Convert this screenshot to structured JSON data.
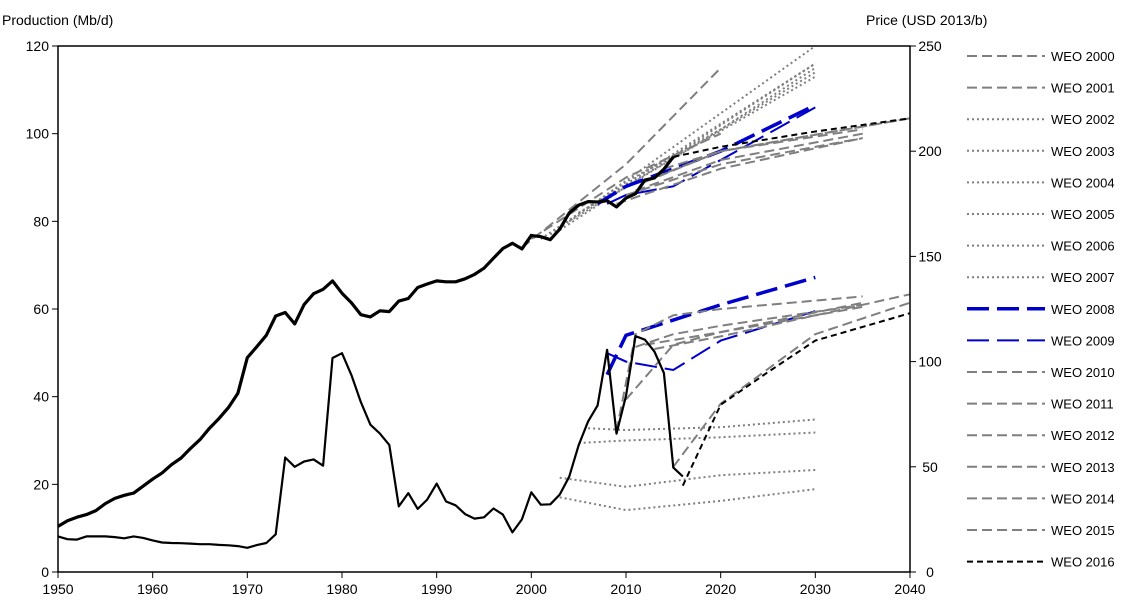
{
  "chart_data": {
    "type": "line",
    "left_axis_title": "Production (Mb/d)",
    "right_axis_title": "Price (USD 2013/b)",
    "x_range": [
      1950,
      2040
    ],
    "x_ticks": [
      "1950",
      "1960",
      "1970",
      "1980",
      "1990",
      "2000",
      "2010",
      "2020",
      "2030",
      "2040"
    ],
    "left_range": [
      0,
      120
    ],
    "left_ticks": [
      "0",
      "20",
      "40",
      "60",
      "80",
      "100",
      "120"
    ],
    "right_range": [
      0,
      250
    ],
    "right_ticks": [
      "0",
      "50",
      "100",
      "150",
      "200",
      "250"
    ],
    "grid": false,
    "legend_position": "right",
    "colors": {
      "grey": "#7f7f7f",
      "blue": "#0000cc",
      "black": "#000000"
    },
    "historical": {
      "production": {
        "x": [
          1950,
          1951,
          1952,
          1953,
          1954,
          1955,
          1956,
          1957,
          1958,
          1959,
          1960,
          1961,
          1962,
          1963,
          1964,
          1965,
          1966,
          1967,
          1968,
          1969,
          1970,
          1971,
          1972,
          1973,
          1974,
          1975,
          1976,
          1977,
          1978,
          1979,
          1980,
          1981,
          1982,
          1983,
          1984,
          1985,
          1986,
          1987,
          1988,
          1989,
          1990,
          1991,
          1992,
          1993,
          1994,
          1995,
          1996,
          1997,
          1998,
          1999,
          2000,
          2001,
          2002,
          2003,
          2004,
          2005,
          2006,
          2007,
          2008,
          2009,
          2010,
          2011,
          2012,
          2013,
          2014,
          2015
        ],
        "y": [
          10.4,
          11.7,
          12.5,
          13.1,
          14,
          15.6,
          16.8,
          17.5,
          18,
          19.6,
          21.2,
          22.6,
          24.5,
          26,
          28.2,
          30.2,
          32.8,
          35,
          37.5,
          40.8,
          48.9,
          51.4,
          54,
          58.4,
          59.2,
          56.6,
          61,
          63.5,
          64.5,
          66.4,
          63.6,
          61.4,
          58.7,
          58.2,
          59.6,
          59.4,
          61.8,
          62.4,
          64.9,
          65.7,
          66.4,
          66.2,
          66.2,
          66.9,
          67.9,
          69.3,
          71.6,
          73.8,
          75,
          73.7,
          76.8,
          76.5,
          75.8,
          78.2,
          81.9,
          83.7,
          84.5,
          84.4,
          84.7,
          83.3,
          85.3,
          86.3,
          89.4,
          89.9,
          91.9,
          94.7
        ]
      },
      "price": {
        "x": [
          1950,
          1951,
          1952,
          1953,
          1954,
          1955,
          1956,
          1957,
          1958,
          1959,
          1960,
          1961,
          1962,
          1963,
          1964,
          1965,
          1966,
          1967,
          1968,
          1969,
          1970,
          1971,
          1972,
          1973,
          1974,
          1975,
          1976,
          1977,
          1978,
          1979,
          1980,
          1981,
          1982,
          1983,
          1984,
          1985,
          1986,
          1987,
          1988,
          1989,
          1990,
          1991,
          1992,
          1993,
          1994,
          1995,
          1996,
          1997,
          1998,
          1999,
          2000,
          2001,
          2002,
          2003,
          2004,
          2005,
          2006,
          2007,
          2008,
          2009,
          2010,
          2011,
          2012,
          2013,
          2014,
          2015,
          2016
        ],
        "y": [
          16.9,
          15.6,
          15.4,
          16.9,
          16.9,
          16.9,
          16.6,
          16,
          16.9,
          16.2,
          15,
          14,
          13.8,
          13.7,
          13.5,
          13.2,
          13.2,
          12.9,
          12.7,
          12.3,
          11.5,
          12.8,
          13.8,
          17.9,
          54.4,
          50,
          52.5,
          53.5,
          50.5,
          101.7,
          104,
          93.5,
          80.7,
          70,
          65.8,
          60.4,
          31.2,
          37.5,
          30,
          34.4,
          42,
          33.5,
          31.7,
          27.5,
          25.4,
          26,
          30.2,
          27.3,
          18.8,
          25,
          37.9,
          32,
          32.2,
          36.8,
          45.3,
          60.3,
          71.6,
          79.2,
          105.6,
          65.8,
          83.7,
          112.1,
          110.4,
          104.8,
          94.6,
          49.6,
          45.4
        ]
      }
    },
    "projections": [
      {
        "name": "WEO 2000",
        "style": "grey-dash",
        "width": 2,
        "lines": [
          {
            "axis": "left",
            "x": [
              1999,
              2010,
              2020
            ],
            "y": [
              74,
              93,
              115
            ]
          }
        ]
      },
      {
        "name": "WEO 2001",
        "style": "grey-dash",
        "width": 2,
        "lines": [
          {
            "axis": "left",
            "x": [
              2000,
              2010,
              2020
            ],
            "y": [
              76,
              90,
              100
            ]
          }
        ]
      },
      {
        "name": "WEO 2002",
        "style": "grey-dot",
        "width": 2,
        "lines": [
          {
            "axis": "left",
            "x": [
              2001,
              2010,
              2020,
              2030
            ],
            "y": [
              76,
              89,
              101,
              115
            ]
          },
          {
            "axis": "right",
            "x": [
              2003,
              2010,
              2020,
              2030
            ],
            "y": [
              44.8,
              40.5,
              46,
              48.5
            ]
          }
        ]
      },
      {
        "name": "WEO 2003",
        "style": "grey-dot",
        "width": 2,
        "lines": [
          {
            "axis": "left",
            "x": [
              2002,
              2030
            ],
            "y": [
              77,
              120
            ]
          },
          {
            "axis": "right",
            "x": [
              2003,
              2010,
              2020,
              2030
            ],
            "y": [
              35.5,
              29.4,
              33.8,
              39.4
            ]
          }
        ]
      },
      {
        "name": "WEO 2004",
        "style": "grey-dot",
        "width": 2,
        "lines": [
          {
            "axis": "left",
            "x": [
              2003,
              2030
            ],
            "y": [
              78,
              116
            ]
          }
        ]
      },
      {
        "name": "WEO 2005",
        "style": "grey-dot",
        "width": 2,
        "lines": [
          {
            "axis": "left",
            "x": [
              2004,
              2030
            ],
            "y": [
              80,
              114
            ]
          },
          {
            "axis": "right",
            "x": [
              2005,
              2010,
              2020,
              2030
            ],
            "y": [
              61.3,
              62.5,
              64,
              66.3
            ]
          }
        ]
      },
      {
        "name": "WEO 2006",
        "style": "grey-dot",
        "width": 2,
        "lines": [
          {
            "axis": "left",
            "x": [
              2005,
              2030
            ],
            "y": [
              82,
              113
            ]
          },
          {
            "axis": "right",
            "x": [
              2006,
              2010,
              2020,
              2030
            ],
            "y": [
              68.3,
              67.5,
              68.8,
              72.5
            ]
          }
        ]
      },
      {
        "name": "WEO 2007",
        "style": "grey-dot",
        "width": 2,
        "lines": [
          {
            "axis": "left",
            "x": [
              2006,
              2030
            ],
            "y": [
              83,
              116
            ]
          }
        ]
      },
      {
        "name": "WEO 2008",
        "style": "blue-long",
        "width": 3.5,
        "lines": [
          {
            "axis": "left",
            "x": [
              2007,
              2010,
              2020,
              2030
            ],
            "y": [
              84,
              88,
              96,
              106.5
            ]
          },
          {
            "axis": "right",
            "x": [
              2008,
              2010,
              2020,
              2030
            ],
            "y": [
              93.8,
              112.5,
              127,
              140
            ]
          }
        ]
      },
      {
        "name": "WEO 2009",
        "style": "blue-long",
        "width": 2,
        "lines": [
          {
            "axis": "left",
            "x": [
              2008,
              2010,
              2015,
              2020,
              2030
            ],
            "y": [
              84,
              86,
              88,
              94,
              106
            ]
          },
          {
            "axis": "right",
            "x": [
              2008,
              2010,
              2015,
              2020,
              2030
            ],
            "y": [
              104,
              100,
              96,
              110,
              124
            ]
          }
        ]
      },
      {
        "name": "WEO 2010",
        "style": "grey-dash",
        "width": 2,
        "lines": [
          {
            "axis": "left",
            "x": [
              2009,
              2020,
              2035
            ],
            "y": [
              84,
              92,
              99
            ]
          },
          {
            "axis": "right",
            "x": [
              2009,
              2011,
              2015,
              2020,
              2035
            ],
            "y": [
              67,
              113,
              122,
              125,
              131
            ]
          }
        ]
      },
      {
        "name": "WEO 2011",
        "style": "grey-dash",
        "width": 2,
        "lines": [
          {
            "axis": "left",
            "x": [
              2010,
              2020,
              2035
            ],
            "y": [
              86,
              93,
              99
            ]
          },
          {
            "axis": "right",
            "x": [
              2010,
              2015,
              2020,
              2035
            ],
            "y": [
              82,
              108,
              114,
              126
            ]
          }
        ]
      },
      {
        "name": "WEO 2012",
        "style": "grey-dash",
        "width": 2,
        "lines": [
          {
            "axis": "left",
            "x": [
              2011,
              2020,
              2035
            ],
            "y": [
              87,
              94,
              100
            ]
          },
          {
            "axis": "right",
            "x": [
              2011,
              2015,
              2020,
              2035
            ],
            "y": [
              107,
              113,
              117,
              127
            ]
          }
        ]
      },
      {
        "name": "WEO 2013",
        "style": "grey-dash",
        "width": 2,
        "lines": [
          {
            "axis": "left",
            "x": [
              2012,
              2020,
              2035
            ],
            "y": [
              89,
              96,
              101
            ]
          },
          {
            "axis": "right",
            "x": [
              2012,
              2020,
              2035
            ],
            "y": [
              108,
              114,
              128
            ]
          }
        ]
      },
      {
        "name": "WEO 2014",
        "style": "grey-dash",
        "width": 2,
        "lines": [
          {
            "axis": "left",
            "x": [
              2013,
              2020,
              2040
            ],
            "y": [
              90,
              96,
              103.5
            ]
          },
          {
            "axis": "right",
            "x": [
              2013,
              2020,
              2040
            ],
            "y": [
              106,
              112,
              132
            ]
          }
        ]
      },
      {
        "name": "WEO 2015",
        "style": "grey-dash",
        "width": 2,
        "lines": [
          {
            "axis": "left",
            "x": [
              2014,
              2020,
              2040
            ],
            "y": [
              92,
              96,
              103.5
            ]
          },
          {
            "axis": "right",
            "x": [
              2015,
              2020,
              2030,
              2040
            ],
            "y": [
              50,
              80,
              113,
              128
            ]
          }
        ]
      },
      {
        "name": "WEO 2016",
        "style": "black-dash",
        "width": 2,
        "lines": [
          {
            "axis": "left",
            "x": [
              2015,
              2020,
              2030,
              2040
            ],
            "y": [
              94.7,
              97,
              100.5,
              103.5
            ]
          },
          {
            "axis": "right",
            "x": [
              2016,
              2020,
              2025,
              2030,
              2040
            ],
            "y": [
              41,
              79.5,
              95,
              110,
              123
            ]
          }
        ]
      }
    ]
  }
}
